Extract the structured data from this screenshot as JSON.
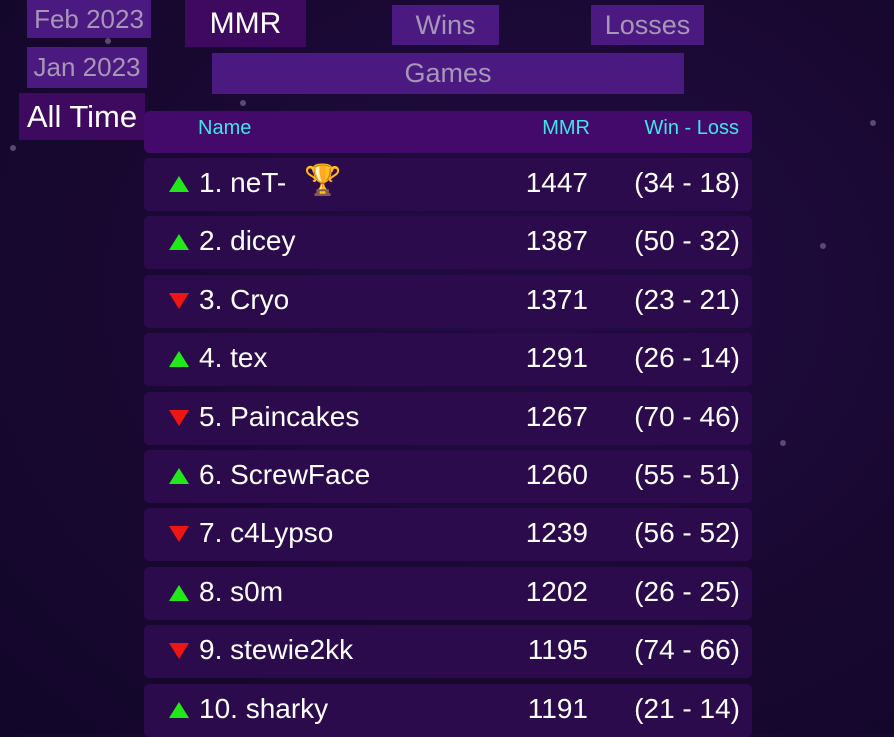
{
  "periods": [
    {
      "label": "Feb 2023",
      "active": false
    },
    {
      "label": "Jan 2023",
      "active": false
    },
    {
      "label": "All Time",
      "active": true
    }
  ],
  "sort_tabs": {
    "mmr": "MMR",
    "wins": "Wins",
    "losses": "Losses",
    "games": "Games",
    "active": "MMR"
  },
  "table": {
    "headers": {
      "name": "Name",
      "mmr": "MMR",
      "winloss": "Win - Loss"
    },
    "rows": [
      {
        "rank_name": "1. neT-",
        "trophy": "🏆",
        "trend": "up",
        "mmr": "1447",
        "wl": "(34 - 18)"
      },
      {
        "rank_name": "2. dicey",
        "trend": "up",
        "mmr": "1387",
        "wl": "(50 - 32)"
      },
      {
        "rank_name": "3. Cryo",
        "trend": "down",
        "mmr": "1371",
        "wl": "(23 - 21)"
      },
      {
        "rank_name": "4. tex",
        "trend": "up",
        "mmr": "1291",
        "wl": "(26 - 14)"
      },
      {
        "rank_name": "5. Paincakes",
        "trend": "down",
        "mmr": "1267",
        "wl": "(70 - 46)"
      },
      {
        "rank_name": "6. ScrewFace",
        "trend": "up",
        "mmr": "1260",
        "wl": "(55 - 51)"
      },
      {
        "rank_name": "7. c4Lypso",
        "trend": "down",
        "mmr": "1239",
        "wl": "(56 - 52)"
      },
      {
        "rank_name": "8. s0m",
        "trend": "up",
        "mmr": "1202",
        "wl": "(26 - 25)"
      },
      {
        "rank_name": "9. stewie2kk",
        "trend": "down",
        "mmr": "1195",
        "wl": "(74 - 66)"
      },
      {
        "rank_name": "10. sharky",
        "trend": "up",
        "mmr": "1191",
        "wl": "(21 - 14)"
      }
    ]
  },
  "colors": {
    "up": "#22e81a",
    "down": "#ee1515",
    "header_text": "#3ee6e6"
  }
}
